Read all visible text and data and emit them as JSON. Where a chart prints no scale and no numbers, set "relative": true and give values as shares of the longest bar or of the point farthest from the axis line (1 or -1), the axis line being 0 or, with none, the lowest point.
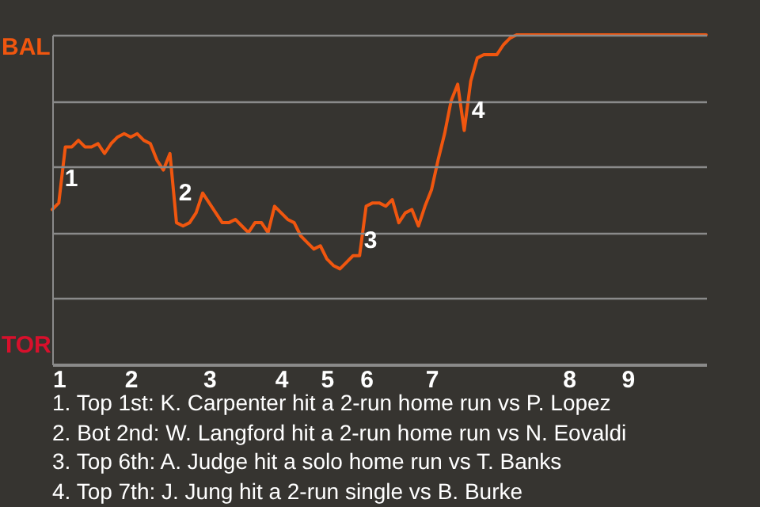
{
  "chart_data": {
    "type": "line",
    "relative": true,
    "categories": [
      null,
      "1",
      null,
      null,
      null,
      null,
      null,
      null,
      null,
      null,
      null,
      null,
      "2",
      null,
      null,
      null,
      null,
      null,
      null,
      null,
      null,
      null,
      null,
      null,
      "3",
      null,
      null,
      null,
      null,
      null,
      null,
      null,
      null,
      null,
      null,
      "4",
      null,
      null,
      null,
      null,
      null,
      null,
      "5",
      null,
      null,
      null,
      null,
      null,
      "6",
      null,
      null,
      null,
      null,
      null,
      null,
      null,
      null,
      null,
      "7",
      null,
      null,
      null,
      null,
      null,
      null,
      null,
      null,
      null,
      null,
      null,
      null,
      null,
      null,
      null,
      null,
      null,
      null,
      null,
      null,
      "8",
      null,
      null,
      null,
      null,
      null,
      null,
      null,
      null,
      "9",
      null,
      null,
      null,
      null,
      null,
      null,
      null,
      null,
      null,
      null,
      null,
      null
    ],
    "series": [
      {
        "color": "#f0560f",
        "values": [
          0.47,
          0.49,
          0.66,
          0.66,
          0.68,
          0.66,
          0.66,
          0.67,
          0.64,
          0.67,
          0.69,
          0.7,
          0.69,
          0.7,
          0.68,
          0.67,
          0.62,
          0.59,
          0.64,
          0.43,
          0.42,
          0.43,
          0.46,
          0.52,
          0.49,
          0.46,
          0.43,
          0.43,
          0.44,
          0.42,
          0.4,
          0.43,
          0.43,
          0.4,
          0.48,
          0.46,
          0.44,
          0.43,
          0.39,
          0.37,
          0.35,
          0.36,
          0.32,
          0.3,
          0.29,
          0.31,
          0.33,
          0.33,
          0.48,
          0.49,
          0.49,
          0.48,
          0.5,
          0.43,
          0.46,
          0.47,
          0.42,
          0.48,
          0.53,
          0.62,
          0.7,
          0.8,
          0.85,
          0.71,
          0.86,
          0.93,
          0.94,
          0.94,
          0.94,
          0.97,
          0.99,
          1,
          1,
          1,
          1,
          1,
          1,
          1,
          1,
          1,
          1,
          1,
          1,
          1,
          1,
          1,
          1,
          1,
          1,
          1,
          1,
          1,
          1,
          1,
          1,
          1,
          1,
          1,
          1,
          1,
          1
        ]
      }
    ],
    "grid": "y",
    "annotations": [
      "1",
      "2",
      "3",
      "4",
      "1. Top 1st: K. Carpenter hit a 2-run home run vs P. Lopez",
      "2. Bot 2nd: W. Langford hit a 2-run home run vs N. Eovaldi",
      "3. Top 6th: A. Judge hit a solo home run vs T. Banks",
      "4. Top 7th: J. Jung hit a 2-run single vs B. Burke",
      "BAL",
      "TOR"
    ]
  }
}
